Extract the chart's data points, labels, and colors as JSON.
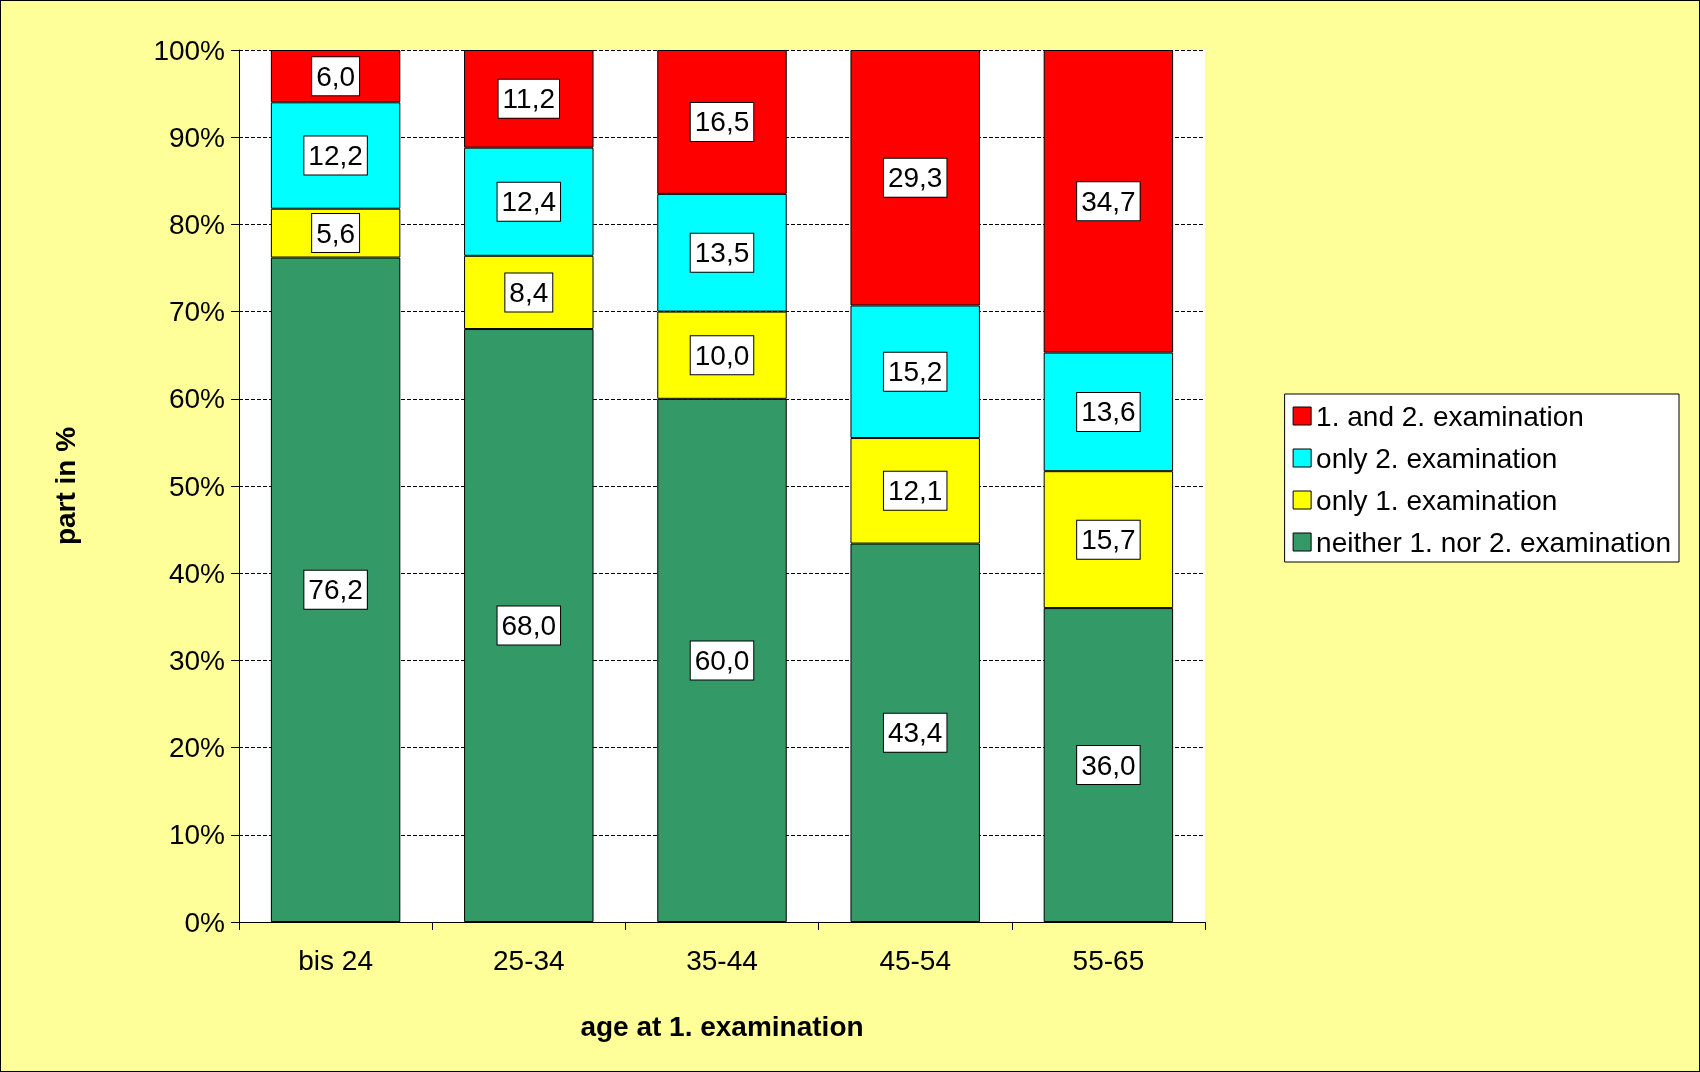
{
  "chart_data": {
    "type": "bar",
    "stacked": true,
    "xlabel": "age at 1. examination",
    "ylabel": "part in %",
    "categories": [
      "bis 24",
      "25-34",
      "35-44",
      "45-54",
      "55-65"
    ],
    "series": [
      {
        "name": "neither 1. nor 2. examination",
        "color": "#339966",
        "values": [
          76.2,
          68.0,
          60.0,
          43.4,
          36.0
        ],
        "value_labels": [
          "76,2",
          "68,0",
          "60,0",
          "43,4",
          "36,0"
        ]
      },
      {
        "name": "only 1. examination",
        "color": "#ffff00",
        "values": [
          5.6,
          8.4,
          10.0,
          12.1,
          15.7
        ],
        "value_labels": [
          "5,6",
          "8,4",
          "10,0",
          "12,1",
          "15,7"
        ]
      },
      {
        "name": "only 2. examination",
        "color": "#00ffff",
        "values": [
          12.2,
          12.4,
          13.5,
          15.2,
          13.6
        ],
        "value_labels": [
          "12,2",
          "12,4",
          "13,5",
          "15,2",
          "13,6"
        ]
      },
      {
        "name": "1. and 2. examination",
        "color": "#ff0000",
        "values": [
          6.0,
          11.2,
          16.5,
          29.3,
          34.7
        ],
        "value_labels": [
          "6,0",
          "11,2",
          "16,5",
          "29,3",
          "34,7"
        ]
      }
    ],
    "ylim": [
      0,
      100
    ],
    "yticks": [
      {
        "value": 0,
        "label": "0%"
      },
      {
        "value": 10,
        "label": "10%"
      },
      {
        "value": 20,
        "label": "20%"
      },
      {
        "value": 30,
        "label": "30%"
      },
      {
        "value": 40,
        "label": "40%"
      },
      {
        "value": 50,
        "label": "50%"
      },
      {
        "value": 60,
        "label": "60%"
      },
      {
        "value": 70,
        "label": "70%"
      },
      {
        "value": 80,
        "label": "80%"
      },
      {
        "value": 90,
        "label": "90%"
      },
      {
        "value": 100,
        "label": "100%"
      }
    ],
    "grid": "y",
    "legend": "right"
  }
}
